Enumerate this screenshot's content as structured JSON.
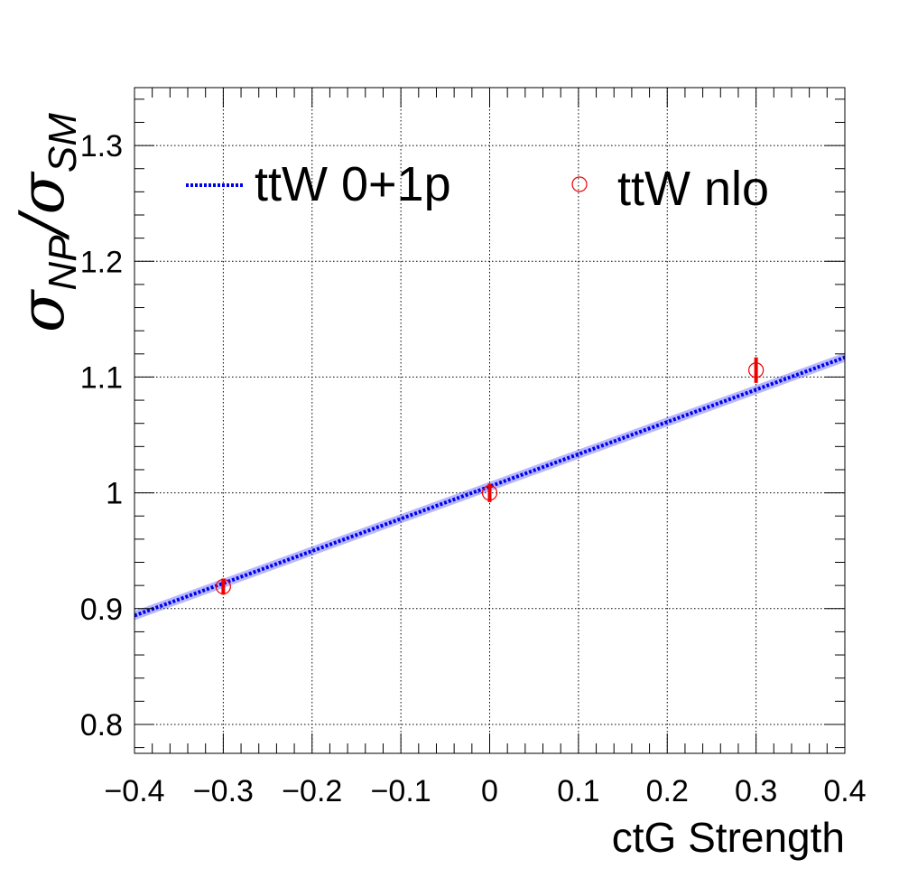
{
  "chart_data": {
    "type": "line",
    "title": "",
    "xlabel": "ctG Strength",
    "ylabel": {
      "symbol": "σ",
      "numerator_subscript": "NP",
      "separator": "/",
      "denominator_subscript": "SM"
    },
    "xlim": [
      -0.4,
      0.4
    ],
    "ylim": [
      0.775,
      1.35
    ],
    "x_ticks": [
      -0.4,
      -0.3,
      -0.2,
      -0.1,
      0,
      0.1,
      0.2,
      0.3,
      0.4
    ],
    "x_tick_labels": [
      "−0.4",
      "−0.3",
      "−0.2",
      "−0.1",
      "0",
      "0.1",
      "0.2",
      "0.3",
      "0.4"
    ],
    "y_ticks": [
      0.8,
      0.9,
      1.0,
      1.1,
      1.2,
      1.3
    ],
    "y_tick_labels": [
      "0.8",
      "0.9",
      "1",
      "1.1",
      "1.2",
      "1.3"
    ],
    "grid": true,
    "legend_position": "top",
    "series": [
      {
        "name": "ttW 0+1p",
        "kind": "fit-line",
        "style": "dotted",
        "color": "#0000ee",
        "band_color": "#3333ff",
        "x": [
          -0.4,
          0.4
        ],
        "y": [
          0.894,
          1.117
        ]
      },
      {
        "name": "ttW nlo",
        "kind": "points-with-errors",
        "marker": "open-circle",
        "color": "#ee0000",
        "points": [
          {
            "x": -0.3,
            "y": 0.919,
            "err": 0.007
          },
          {
            "x": 0.0,
            "y": 1.0,
            "err": 0.008
          },
          {
            "x": 0.3,
            "y": 1.106,
            "err": 0.011
          }
        ]
      }
    ]
  }
}
